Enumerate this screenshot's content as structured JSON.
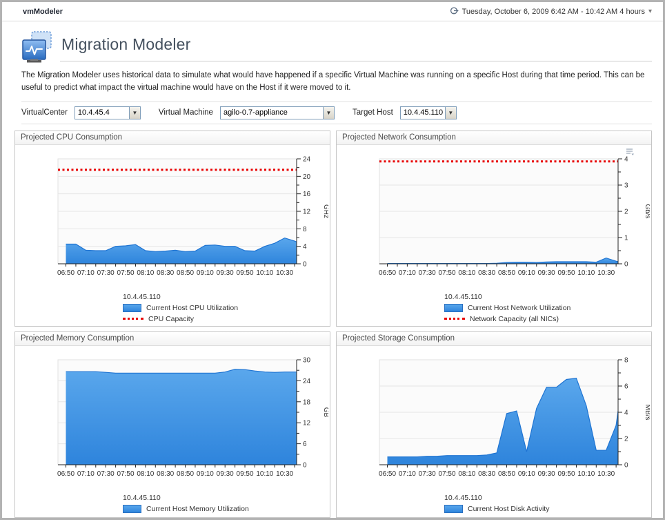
{
  "window": {
    "app_title": "vmModeler",
    "time_range_label": "Tuesday, October 6, 2009 6:42 AM - 10:42 AM 4 hours"
  },
  "header": {
    "title": "Migration Modeler",
    "description": "The Migration Modeler uses historical data to simulate what would have happened if a specific Virtual Machine was running on a specific Host during that time period. This can be useful to predict what impact the virtual machine would have on the Host if it were moved to it."
  },
  "filters": {
    "virtualcenter": {
      "label": "VirtualCenter",
      "value": "10.4.45.4"
    },
    "virtual_machine": {
      "label": "Virtual Machine",
      "value": "agilo-0.7-appliance"
    },
    "target_host": {
      "label": "Target Host",
      "value": "10.4.45.110"
    }
  },
  "colors": {
    "area_fill_top": "#5aa7ec",
    "area_fill_bottom": "#2e84dc",
    "area_stroke": "#1f74d2",
    "capacity_line": "#e80000",
    "grid_line": "#e6e6e6",
    "plot_bg": "#fbfbfb",
    "axis": "#222222",
    "tick_text": "#333333"
  },
  "chart_data": [
    {
      "type": "area",
      "title": "Projected CPU Consumption",
      "ylabel": "GHz",
      "ylim": [
        0,
        24
      ],
      "ytick_step": 4,
      "x_range_minutes": [
        402,
        642
      ],
      "x_tick_labels": [
        "06:50",
        "07:10",
        "07:30",
        "07:50",
        "08:10",
        "08:30",
        "08:50",
        "09:10",
        "09:30",
        "09:50",
        "10:10",
        "10:30"
      ],
      "host": "10.4.45.110",
      "options_icon": false,
      "series": [
        {
          "name": "Current Host CPU Utilization",
          "x_minutes": [
            410,
            420,
            430,
            440,
            450,
            460,
            470,
            480,
            490,
            500,
            510,
            520,
            530,
            540,
            550,
            560,
            570,
            580,
            590,
            600,
            610,
            620,
            630,
            640,
            642
          ],
          "values": [
            4.5,
            4.5,
            3.1,
            3.0,
            3.0,
            4.0,
            4.1,
            4.4,
            3.0,
            2.8,
            2.9,
            3.1,
            2.8,
            2.9,
            4.2,
            4.3,
            4.0,
            4.0,
            3.0,
            2.9,
            4.0,
            4.7,
            5.9,
            5.2,
            5.0
          ]
        }
      ],
      "capacity": {
        "name": "CPU Capacity",
        "value": 21.5
      }
    },
    {
      "type": "area",
      "title": "Projected Network Consumption",
      "ylabel": "Gb/s",
      "ylim": [
        0,
        4
      ],
      "ytick_step": 1,
      "x_range_minutes": [
        402,
        642
      ],
      "x_tick_labels": [
        "06:50",
        "07:10",
        "07:30",
        "07:50",
        "08:10",
        "08:30",
        "08:50",
        "09:10",
        "09:30",
        "09:50",
        "10:10",
        "10:30"
      ],
      "host": "10.4.45.110",
      "options_icon": true,
      "series": [
        {
          "name": "Current Host Network Utilization",
          "x_minutes": [
            410,
            420,
            430,
            440,
            450,
            460,
            470,
            480,
            490,
            500,
            510,
            520,
            530,
            540,
            550,
            560,
            570,
            580,
            590,
            600,
            610,
            620,
            630,
            640,
            642
          ],
          "values": [
            0.01,
            0.01,
            0.01,
            0.01,
            0.01,
            0.01,
            0.01,
            0.01,
            0.01,
            0.01,
            0.01,
            0.02,
            0.05,
            0.06,
            0.06,
            0.05,
            0.07,
            0.08,
            0.08,
            0.08,
            0.08,
            0.06,
            0.22,
            0.1,
            0.08
          ]
        }
      ],
      "capacity": {
        "name": "Network Capacity (all NICs)",
        "value": 3.9
      }
    },
    {
      "type": "area",
      "title": "Projected Memory Consumption",
      "ylabel": "GB",
      "ylim": [
        0,
        30
      ],
      "ytick_step": 6,
      "x_range_minutes": [
        402,
        642
      ],
      "x_tick_labels": [
        "06:50",
        "07:10",
        "07:30",
        "07:50",
        "08:10",
        "08:30",
        "08:50",
        "09:10",
        "09:30",
        "09:50",
        "10:10",
        "10:30"
      ],
      "host": "10.4.45.110",
      "options_icon": false,
      "series": [
        {
          "name": "Current Host Memory Utilization",
          "x_minutes": [
            410,
            420,
            430,
            440,
            450,
            460,
            470,
            480,
            490,
            500,
            510,
            520,
            530,
            540,
            550,
            560,
            570,
            580,
            590,
            600,
            610,
            620,
            630,
            640,
            642
          ],
          "values": [
            26.6,
            26.6,
            26.6,
            26.6,
            26.4,
            26.2,
            26.2,
            26.2,
            26.2,
            26.2,
            26.2,
            26.2,
            26.2,
            26.2,
            26.2,
            26.2,
            26.5,
            27.3,
            27.2,
            26.8,
            26.5,
            26.4,
            26.5,
            26.5,
            26.5
          ]
        }
      ],
      "capacity": null
    },
    {
      "type": "area",
      "title": "Projected Storage Consumption",
      "ylabel": "MB/s",
      "ylim": [
        0,
        8
      ],
      "ytick_step": 2,
      "x_range_minutes": [
        402,
        642
      ],
      "x_tick_labels": [
        "06:50",
        "07:10",
        "07:30",
        "07:50",
        "08:10",
        "08:30",
        "08:50",
        "09:10",
        "09:30",
        "09:50",
        "10:10",
        "10:30"
      ],
      "host": "10.4.45.110",
      "options_icon": false,
      "series": [
        {
          "name": "Current Host Disk Activity",
          "x_minutes": [
            410,
            420,
            430,
            440,
            450,
            460,
            470,
            480,
            490,
            500,
            510,
            520,
            530,
            540,
            550,
            560,
            570,
            580,
            590,
            600,
            610,
            620,
            630,
            640,
            642
          ],
          "values": [
            0.6,
            0.6,
            0.6,
            0.6,
            0.65,
            0.65,
            0.7,
            0.7,
            0.7,
            0.7,
            0.75,
            0.9,
            3.9,
            4.1,
            1.0,
            4.3,
            5.9,
            5.9,
            6.5,
            6.6,
            4.5,
            1.1,
            1.1,
            3.0,
            4.1
          ]
        }
      ],
      "capacity": null
    }
  ]
}
